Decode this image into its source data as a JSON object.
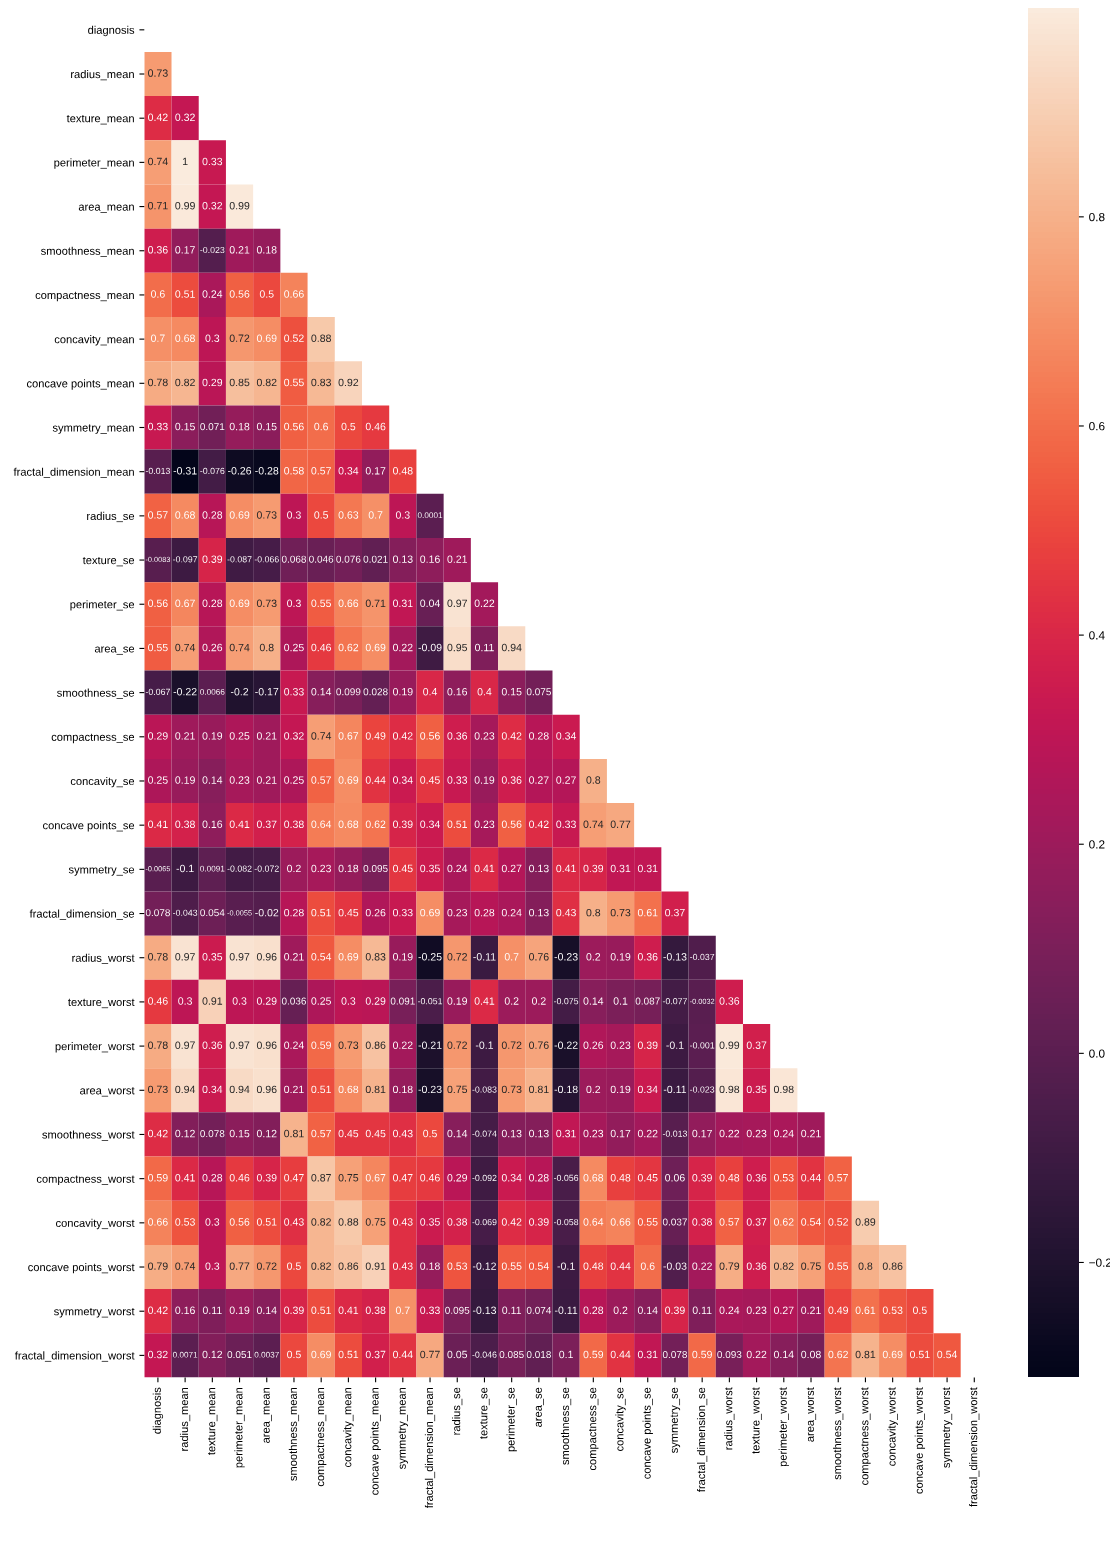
{
  "chart_data": {
    "type": "heatmap",
    "categories": [
      "diagnosis",
      "radius_mean",
      "texture_mean",
      "perimeter_mean",
      "area_mean",
      "smoothness_mean",
      "compactness_mean",
      "concavity_mean",
      "concave points_mean",
      "symmetry_mean",
      "fractal_dimension_mean",
      "radius_se",
      "texture_se",
      "perimeter_se",
      "area_se",
      "smoothness_se",
      "compactness_se",
      "concavity_se",
      "concave points_se",
      "symmetry_se",
      "fractal_dimension_se",
      "radius_worst",
      "texture_worst",
      "perimeter_worst",
      "area_worst",
      "smoothness_worst",
      "compactness_worst",
      "concavity_worst",
      "concave points_worst",
      "symmetry_worst",
      "fractal_dimension_worst"
    ],
    "y_categories": [
      "diagnosis",
      "radius_mean",
      "texture_mean",
      "perimeter_mean",
      "area_mean",
      "smoothness_mean",
      "compactness_mean",
      "concavity_mean",
      "concave points_mean",
      "symmetry_mean",
      "fractal_dimension_mean",
      "radius_se",
      "texture_se",
      "perimeter_se",
      "area_se",
      "smoothness_se",
      "compactness_se",
      "concavity_se",
      "concave points_se",
      "symmetry_se",
      "fractal_dimension_se",
      "radius_worst",
      "texture_worst",
      "perimeter_worst",
      "area_worst",
      "smoothness_worst",
      "compactness_worst",
      "concavity_worst",
      "concave points_worst",
      "symmetry_worst",
      "fractal_dimension_worst"
    ],
    "cells": [
      [
        null,
        null,
        null,
        null,
        null,
        null,
        null,
        null,
        null,
        null,
        null,
        null,
        null,
        null,
        null,
        null,
        null,
        null,
        null,
        null,
        null,
        null,
        null,
        null,
        null,
        null,
        null,
        null,
        null,
        null,
        null
      ],
      [
        0.73,
        null,
        null,
        null,
        null,
        null,
        null,
        null,
        null,
        null,
        null,
        null,
        null,
        null,
        null,
        null,
        null,
        null,
        null,
        null,
        null,
        null,
        null,
        null,
        null,
        null,
        null,
        null,
        null,
        null,
        null
      ],
      [
        0.42,
        0.32,
        null,
        null,
        null,
        null,
        null,
        null,
        null,
        null,
        null,
        null,
        null,
        null,
        null,
        null,
        null,
        null,
        null,
        null,
        null,
        null,
        null,
        null,
        null,
        null,
        null,
        null,
        null,
        null,
        null
      ],
      [
        0.74,
        1,
        0.33,
        null,
        null,
        null,
        null,
        null,
        null,
        null,
        null,
        null,
        null,
        null,
        null,
        null,
        null,
        null,
        null,
        null,
        null,
        null,
        null,
        null,
        null,
        null,
        null,
        null,
        null,
        null,
        null
      ],
      [
        0.71,
        0.99,
        0.32,
        0.99,
        null,
        null,
        null,
        null,
        null,
        null,
        null,
        null,
        null,
        null,
        null,
        null,
        null,
        null,
        null,
        null,
        null,
        null,
        null,
        null,
        null,
        null,
        null,
        null,
        null,
        null,
        null
      ],
      [
        0.36,
        0.17,
        -0.023,
        0.21,
        0.18,
        null,
        null,
        null,
        null,
        null,
        null,
        null,
        null,
        null,
        null,
        null,
        null,
        null,
        null,
        null,
        null,
        null,
        null,
        null,
        null,
        null,
        null,
        null,
        null,
        null,
        null
      ],
      [
        0.6,
        0.51,
        0.24,
        0.56,
        0.5,
        0.66,
        null,
        null,
        null,
        null,
        null,
        null,
        null,
        null,
        null,
        null,
        null,
        null,
        null,
        null,
        null,
        null,
        null,
        null,
        null,
        null,
        null,
        null,
        null,
        null,
        null
      ],
      [
        0.7,
        0.68,
        0.3,
        0.72,
        0.69,
        0.52,
        0.88,
        null,
        null,
        null,
        null,
        null,
        null,
        null,
        null,
        null,
        null,
        null,
        null,
        null,
        null,
        null,
        null,
        null,
        null,
        null,
        null,
        null,
        null,
        null,
        null
      ],
      [
        0.78,
        0.82,
        0.29,
        0.85,
        0.82,
        0.55,
        0.83,
        0.92,
        null,
        null,
        null,
        null,
        null,
        null,
        null,
        null,
        null,
        null,
        null,
        null,
        null,
        null,
        null,
        null,
        null,
        null,
        null,
        null,
        null,
        null,
        null
      ],
      [
        0.33,
        0.15,
        0.071,
        0.18,
        0.15,
        0.56,
        0.6,
        0.5,
        0.46,
        null,
        null,
        null,
        null,
        null,
        null,
        null,
        null,
        null,
        null,
        null,
        null,
        null,
        null,
        null,
        null,
        null,
        null,
        null,
        null,
        null,
        null
      ],
      [
        -0.013,
        -0.31,
        -0.076,
        -0.26,
        -0.28,
        0.58,
        0.57,
        0.34,
        0.17,
        0.48,
        null,
        null,
        null,
        null,
        null,
        null,
        null,
        null,
        null,
        null,
        null,
        null,
        null,
        null,
        null,
        null,
        null,
        null,
        null,
        null,
        null
      ],
      [
        0.57,
        0.68,
        0.28,
        0.69,
        0.73,
        0.3,
        0.5,
        0.63,
        0.7,
        0.3,
        0.0001,
        null,
        null,
        null,
        null,
        null,
        null,
        null,
        null,
        null,
        null,
        null,
        null,
        null,
        null,
        null,
        null,
        null,
        null,
        null,
        null
      ],
      [
        -0.0083,
        -0.097,
        0.39,
        -0.087,
        -0.066,
        0.068,
        0.046,
        0.076,
        0.021,
        0.13,
        0.16,
        0.21,
        null,
        null,
        null,
        null,
        null,
        null,
        null,
        null,
        null,
        null,
        null,
        null,
        null,
        null,
        null,
        null,
        null,
        null,
        null
      ],
      [
        0.56,
        0.67,
        0.28,
        0.69,
        0.73,
        0.3,
        0.55,
        0.66,
        0.71,
        0.31,
        0.04,
        0.97,
        0.22,
        null,
        null,
        null,
        null,
        null,
        null,
        null,
        null,
        null,
        null,
        null,
        null,
        null,
        null,
        null,
        null,
        null,
        null
      ],
      [
        0.55,
        0.74,
        0.26,
        0.74,
        0.8,
        0.25,
        0.46,
        0.62,
        0.69,
        0.22,
        -0.09,
        0.95,
        0.11,
        0.94,
        null,
        null,
        null,
        null,
        null,
        null,
        null,
        null,
        null,
        null,
        null,
        null,
        null,
        null,
        null,
        null,
        null
      ],
      [
        -0.067,
        -0.22,
        0.0066,
        -0.2,
        -0.17,
        0.33,
        0.14,
        0.099,
        0.028,
        0.19,
        0.4,
        0.16,
        0.4,
        0.15,
        0.075,
        null,
        null,
        null,
        null,
        null,
        null,
        null,
        null,
        null,
        null,
        null,
        null,
        null,
        null,
        null,
        null
      ],
      [
        0.29,
        0.21,
        0.19,
        0.25,
        0.21,
        0.32,
        0.74,
        0.67,
        0.49,
        0.42,
        0.56,
        0.36,
        0.23,
        0.42,
        0.28,
        0.34,
        null,
        null,
        null,
        null,
        null,
        null,
        null,
        null,
        null,
        null,
        null,
        null,
        null,
        null,
        null
      ],
      [
        0.25,
        0.19,
        0.14,
        0.23,
        0.21,
        0.25,
        0.57,
        0.69,
        0.44,
        0.34,
        0.45,
        0.33,
        0.19,
        0.36,
        0.27,
        0.27,
        0.8,
        null,
        null,
        null,
        null,
        null,
        null,
        null,
        null,
        null,
        null,
        null,
        null,
        null,
        null
      ],
      [
        0.41,
        0.38,
        0.16,
        0.41,
        0.37,
        0.38,
        0.64,
        0.68,
        0.62,
        0.39,
        0.34,
        0.51,
        0.23,
        0.56,
        0.42,
        0.33,
        0.74,
        0.77,
        null,
        null,
        null,
        null,
        null,
        null,
        null,
        null,
        null,
        null,
        null,
        null,
        null
      ],
      [
        -0.0065,
        -0.1,
        0.0091,
        -0.082,
        -0.072,
        0.2,
        0.23,
        0.18,
        0.095,
        0.45,
        0.35,
        0.24,
        0.41,
        0.27,
        0.13,
        0.41,
        0.39,
        0.31,
        0.31,
        null,
        null,
        null,
        null,
        null,
        null,
        null,
        null,
        null,
        null,
        null,
        null
      ],
      [
        0.078,
        -0.043,
        0.054,
        -0.0055,
        -0.02,
        0.28,
        0.51,
        0.45,
        0.26,
        0.33,
        0.69,
        0.23,
        0.28,
        0.24,
        0.13,
        0.43,
        0.8,
        0.73,
        0.61,
        0.37,
        null,
        null,
        null,
        null,
        null,
        null,
        null,
        null,
        null,
        null,
        null
      ],
      [
        0.78,
        0.97,
        0.35,
        0.97,
        0.96,
        0.21,
        0.54,
        0.69,
        0.83,
        0.19,
        -0.25,
        0.72,
        -0.11,
        0.7,
        0.76,
        -0.23,
        0.2,
        0.19,
        0.36,
        -0.13,
        -0.037,
        null,
        null,
        null,
        null,
        null,
        null,
        null,
        null,
        null,
        null
      ],
      [
        0.46,
        0.3,
        0.91,
        0.3,
        0.29,
        0.036,
        0.25,
        0.3,
        0.29,
        0.091,
        -0.051,
        0.19,
        0.41,
        0.2,
        0.2,
        -0.075,
        0.14,
        0.1,
        0.087,
        -0.077,
        -0.0032,
        0.36,
        null,
        null,
        null,
        null,
        null,
        null,
        null,
        null,
        null
      ],
      [
        0.78,
        0.97,
        0.36,
        0.97,
        0.96,
        0.24,
        0.59,
        0.73,
        0.86,
        0.22,
        -0.21,
        0.72,
        -0.1,
        0.72,
        0.76,
        -0.22,
        0.26,
        0.23,
        0.39,
        -0.1,
        -0.001,
        0.99,
        0.37,
        null,
        null,
        null,
        null,
        null,
        null,
        null,
        null
      ],
      [
        0.73,
        0.94,
        0.34,
        0.94,
        0.96,
        0.21,
        0.51,
        0.68,
        0.81,
        0.18,
        -0.23,
        0.75,
        -0.083,
        0.73,
        0.81,
        -0.18,
        0.2,
        0.19,
        0.34,
        -0.11,
        -0.023,
        0.98,
        0.35,
        0.98,
        null,
        null,
        null,
        null,
        null,
        null,
        null
      ],
      [
        0.42,
        0.12,
        0.078,
        0.15,
        0.12,
        0.81,
        0.57,
        0.45,
        0.45,
        0.43,
        0.5,
        0.14,
        -0.074,
        0.13,
        0.13,
        0.31,
        0.23,
        0.17,
        0.22,
        -0.013,
        0.17,
        0.22,
        0.23,
        0.24,
        0.21,
        null,
        null,
        null,
        null,
        null,
        null
      ],
      [
        0.59,
        0.41,
        0.28,
        0.46,
        0.39,
        0.47,
        0.87,
        0.75,
        0.67,
        0.47,
        0.46,
        0.29,
        -0.092,
        0.34,
        0.28,
        -0.056,
        0.68,
        0.48,
        0.45,
        0.06,
        0.39,
        0.48,
        0.36,
        0.53,
        0.44,
        0.57,
        null,
        null,
        null,
        null,
        null
      ],
      [
        0.66,
        0.53,
        0.3,
        0.56,
        0.51,
        0.43,
        0.82,
        0.88,
        0.75,
        0.43,
        0.35,
        0.38,
        -0.069,
        0.42,
        0.39,
        -0.058,
        0.64,
        0.66,
        0.55,
        0.037,
        0.38,
        0.57,
        0.37,
        0.62,
        0.54,
        0.52,
        0.89,
        null,
        null,
        null,
        null
      ],
      [
        0.79,
        0.74,
        0.3,
        0.77,
        0.72,
        0.5,
        0.82,
        0.86,
        0.91,
        0.43,
        0.18,
        0.53,
        -0.12,
        0.55,
        0.54,
        -0.1,
        0.48,
        0.44,
        0.6,
        -0.03,
        0.22,
        0.79,
        0.36,
        0.82,
        0.75,
        0.55,
        0.8,
        0.86,
        null,
        null,
        null
      ],
      [
        0.42,
        0.16,
        0.11,
        0.19,
        0.14,
        0.39,
        0.51,
        0.41,
        0.38,
        0.7,
        0.33,
        0.095,
        -0.13,
        0.11,
        0.074,
        -0.11,
        0.28,
        0.2,
        0.14,
        0.39,
        0.11,
        0.24,
        0.23,
        0.27,
        0.21,
        0.49,
        0.61,
        0.53,
        0.5,
        null,
        null
      ],
      [
        0.32,
        0.0071,
        0.12,
        0.051,
        0.0037,
        0.5,
        0.69,
        0.51,
        0.37,
        0.44,
        0.77,
        0.05,
        -0.046,
        0.085,
        0.018,
        0.1,
        0.59,
        0.44,
        0.31,
        0.078,
        0.59,
        0.093,
        0.22,
        0.14,
        0.08,
        0.62,
        0.81,
        0.69,
        0.51,
        0.54,
        null
      ]
    ],
    "data_labels": true,
    "clim": [
      -0.31,
      1
    ],
    "cticks": [
      {
        "value": -0.2,
        "label": "−0.2"
      },
      {
        "value": 0,
        "label": "0.0"
      },
      {
        "value": 0.2,
        "label": "0.2"
      },
      {
        "value": 0.4,
        "label": "0.4"
      },
      {
        "value": 0.6,
        "label": "0.6"
      },
      {
        "value": 0.8,
        "label": "0.8"
      }
    ]
  }
}
